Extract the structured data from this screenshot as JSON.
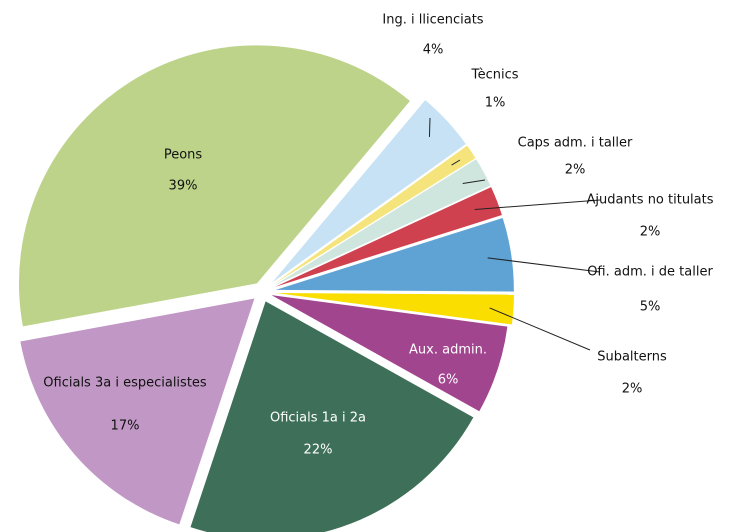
{
  "chart_data": {
    "type": "pie",
    "categories": [
      "Ing. i llicenciats",
      "Tècnics",
      "Caps adm. i taller",
      "Ajudants no titulats",
      "Ofi. adm. i de taller",
      "Subalterns",
      "Aux. admin.",
      "Oficials 1a i 2a",
      "Oficials 3a i especialistes",
      "Peons"
    ],
    "values": [
      4,
      1,
      2,
      2,
      5,
      2,
      6,
      22,
      17,
      39
    ],
    "value_labels": [
      "4%",
      "1%",
      "2%",
      "2%",
      "5%",
      "2%",
      "6%",
      "22%",
      "17%",
      "39%"
    ],
    "colors": [
      "#c6e2f4",
      "#f5e47c",
      "#cfe6df",
      "#d0414f",
      "#5fa3d5",
      "#f9de00",
      "#a2458f",
      "#3e6f58",
      "#c198c5",
      "#bdd38a"
    ]
  }
}
